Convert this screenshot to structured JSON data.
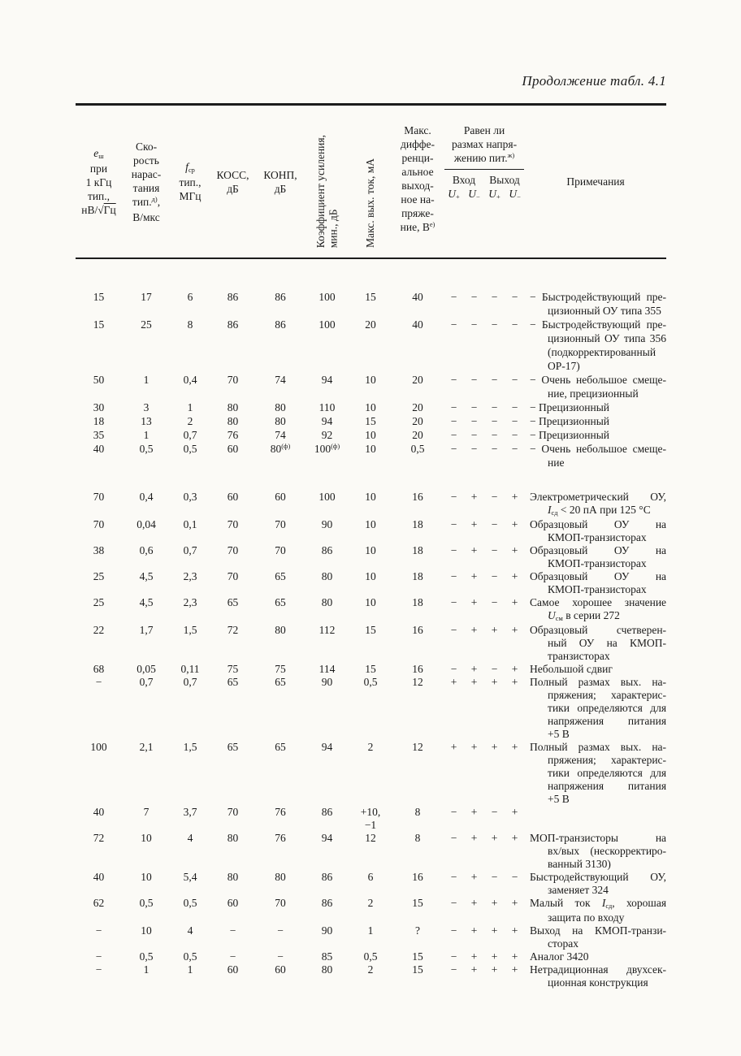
{
  "page": {
    "title": "Продолжение табл. 4.1"
  },
  "table": {
    "headers": {
      "noise": [
        "*{e}_{ш}",
        "при",
        "1 кГц",
        "тип.,",
        "нВ/√~{Гц}"
      ],
      "slew": [
        "Ско-",
        "рость",
        "нарас-",
        "тания",
        "тип.^{д)},",
        "В/мкс"
      ],
      "fsr": [
        "*{f}_{ср}",
        "тип.,",
        "МГц"
      ],
      "koss": [
        "КОСС,",
        "дБ"
      ],
      "konp": [
        "КОНП,",
        "дБ"
      ],
      "gain": [
        "Коэффициент усиления,",
        "мин., дБ"
      ],
      "iout": [
        "Макс. вых. ток, мА"
      ],
      "udiff": [
        "Макс.",
        "диффе-",
        "ренци-",
        "альное",
        "выход-",
        "ное на-",
        "пряже-",
        "ние, В^{е)}"
      ],
      "swing_title": [
        "Равен ли",
        "размах напря-",
        "жению пит.^{ж)}"
      ],
      "swing_in": "Вход",
      "swing_out": "Выход",
      "swing_u": [
        "*{U}_{+}",
        "*{U}_{−}",
        "*{U}_{+}",
        "*{U}_{−}"
      ],
      "notes": "Примечания"
    },
    "rows": [
      {
        "b1": true,
        "gap": 38,
        "c": [
          "15",
          "17",
          "6",
          "86",
          "86",
          "100",
          "15",
          "40"
        ],
        "s": [
          "−",
          "−",
          "−",
          "−"
        ],
        "n": [
          "− Быстродействующий пре-",
          "цизионный ОУ типа 355"
        ]
      },
      {
        "b1": true,
        "c": [
          "15",
          "25",
          "8",
          "86",
          "86",
          "100",
          "20",
          "40"
        ],
        "s": [
          "−",
          "−",
          "−",
          "−"
        ],
        "n": [
          "− Быстродействующий пре-",
          "цизионный ОУ типа 356",
          "(подкорректированный",
          "ОР-17)"
        ]
      },
      {
        "b1": true,
        "c": [
          "50",
          "1",
          "0,4",
          "70",
          "74",
          "94",
          "10",
          "20"
        ],
        "s": [
          "−",
          "−",
          "−",
          "−"
        ],
        "n": [
          "− Очень небольшое смеще-",
          "ние, прецизионный"
        ]
      },
      {
        "b1": true,
        "c": [
          "30",
          "3",
          "1",
          "80",
          "80",
          "110",
          "10",
          "20"
        ],
        "s": [
          "−",
          "−",
          "−",
          "−"
        ],
        "n": [
          "− Прецизионный"
        ]
      },
      {
        "b1": true,
        "c": [
          "18",
          "13",
          "2",
          "80",
          "80",
          "94",
          "15",
          "20"
        ],
        "s": [
          "−",
          "−",
          "−",
          "−"
        ],
        "n": [
          "− Прецизионный"
        ]
      },
      {
        "b1": true,
        "c": [
          "35",
          "1",
          "0,7",
          "76",
          "74",
          "92",
          "10",
          "20"
        ],
        "s": [
          "−",
          "−",
          "−",
          "−"
        ],
        "n": [
          "− Прецизионный"
        ]
      },
      {
        "b1": true,
        "c": [
          "40",
          "0,5",
          "0,5",
          "60",
          "80^{(ф)}",
          "100^{(ф)}",
          "10",
          "0,5"
        ],
        "s": [
          "−",
          "−",
          "−",
          "−"
        ],
        "n": [
          "− Очень небольшое смеще-",
          "ние"
        ]
      },
      {
        "gap": 26,
        "c": [
          "70",
          "0,4",
          "0,3",
          "60",
          "60",
          "100",
          "10",
          "16"
        ],
        "s": [
          "−",
          "+",
          "−",
          "+"
        ],
        "n": [
          "Электрометрический ОУ,",
          "*{I}_{сд} < 20 пА при 125 °C"
        ]
      },
      {
        "c": [
          "70",
          "0,04",
          "0,1",
          "70",
          "70",
          "90",
          "10",
          "18"
        ],
        "s": [
          "−",
          "+",
          "−",
          "+"
        ],
        "n": [
          "Образцовый ОУ на",
          "КМОП-транзисторах"
        ]
      },
      {
        "c": [
          "38",
          "0,6",
          "0,7",
          "70",
          "70",
          "86",
          "10",
          "18"
        ],
        "s": [
          "−",
          "+",
          "−",
          "+"
        ],
        "n": [
          "Образцовый ОУ на",
          "КМОП-транзисторах"
        ]
      },
      {
        "c": [
          "25",
          "4,5",
          "2,3",
          "70",
          "65",
          "80",
          "10",
          "18"
        ],
        "s": [
          "−",
          "+",
          "−",
          "+"
        ],
        "n": [
          "Образцовый ОУ на",
          "КМОП-транзисторах"
        ]
      },
      {
        "c": [
          "25",
          "4,5",
          "2,3",
          "65",
          "65",
          "80",
          "10",
          "18"
        ],
        "s": [
          "−",
          "+",
          "−",
          "+"
        ],
        "n": [
          "Самое хорошее значение",
          "*{U}_{см} в серии 272"
        ]
      },
      {
        "c": [
          "22",
          "1,7",
          "1,5",
          "72",
          "80",
          "112",
          "15",
          "16"
        ],
        "s": [
          "−",
          "+",
          "+",
          "+"
        ],
        "n": [
          "Образцовый счетверен-",
          "ный ОУ на КМОП-",
          "транзисторах"
        ]
      },
      {
        "c": [
          "68",
          "0,05",
          "0,11",
          "75",
          "75",
          "114",
          "15",
          "16"
        ],
        "s": [
          "−",
          "+",
          "−",
          "+"
        ],
        "n": [
          "Небольшой сдвиг"
        ]
      },
      {
        "c": [
          "−",
          "0,7",
          "0,7",
          "65",
          "65",
          "90",
          "0,5",
          "12"
        ],
        "s": [
          "+",
          "+",
          "+",
          "+"
        ],
        "n": [
          "Полный размах вых. на-",
          "пряжения; характерис-",
          "тики определяются для",
          "напряжения питания",
          "+5 В"
        ]
      },
      {
        "c": [
          "100",
          "2,1",
          "1,5",
          "65",
          "65",
          "94",
          "2",
          "12"
        ],
        "s": [
          "+",
          "+",
          "+",
          "+"
        ],
        "n": [
          "Полный размах вых. на-",
          "пряжения; характерис-",
          "тики определяются для",
          "напряжения питания",
          "+5 В"
        ]
      },
      {
        "c": [
          "40",
          "7",
          "3,7",
          "70",
          "76",
          "86",
          "+10,\n−1",
          "8"
        ],
        "s": [
          "−",
          "+",
          "−",
          "+"
        ],
        "n": []
      },
      {
        "c": [
          "72",
          "10",
          "4",
          "80",
          "76",
          "94",
          "12",
          "8"
        ],
        "s": [
          "−",
          "+",
          "+",
          "+"
        ],
        "n": [
          "МОП-транзисторы на",
          "вх/вых (нескорректиро-",
          "ванный 3130)"
        ]
      },
      {
        "c": [
          "40",
          "10",
          "5,4",
          "80",
          "80",
          "86",
          "6",
          "16"
        ],
        "s": [
          "−",
          "+",
          "−",
          "−"
        ],
        "n": [
          "Быстродействующий ОУ,",
          "заменяет 324"
        ]
      },
      {
        "c": [
          "62",
          "0,5",
          "0,5",
          "60",
          "70",
          "86",
          "2",
          "15"
        ],
        "s": [
          "−",
          "+",
          "+",
          "+"
        ],
        "n": [
          "Малый ток *{I}_{сд}, хорошая",
          "защита по входу"
        ]
      },
      {
        "c": [
          "−",
          "10",
          "4",
          "−",
          "−",
          "90",
          "1",
          "?"
        ],
        "s": [
          "−",
          "+",
          "+",
          "+"
        ],
        "n": [
          "Выход на КМОП-транзи-",
          "сторах"
        ]
      },
      {
        "c": [
          "−",
          "0,5",
          "0,5",
          "−",
          "−",
          "85",
          "0,5",
          "15"
        ],
        "s": [
          "−",
          "+",
          "+",
          "+"
        ],
        "n": [
          "Аналог 3420"
        ]
      },
      {
        "c": [
          "−",
          "1",
          "1",
          "60",
          "60",
          "80",
          "2",
          "15"
        ],
        "s": [
          "−",
          "+",
          "+",
          "+"
        ],
        "n": [
          "Нетрадиционная двухсек-",
          "ционная конструкция"
        ]
      }
    ]
  }
}
